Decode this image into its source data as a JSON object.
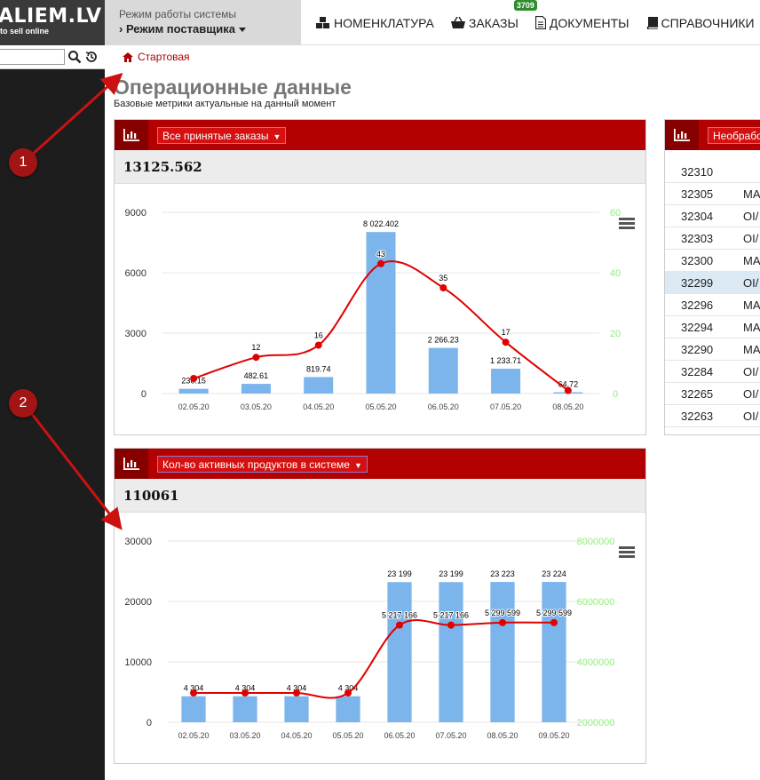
{
  "logo": {
    "name": "ALIEM.LV",
    "tagline": "to sell online"
  },
  "search": {
    "placeholder": "",
    "value": ""
  },
  "mode": {
    "caption": "Режим работы системы",
    "value": "Режим поставщика"
  },
  "nav": [
    {
      "label": "НОМЕНКЛАТУРА",
      "icon": "cubes-icon"
    },
    {
      "label": "ЗАКАЗЫ",
      "icon": "basket-icon",
      "badge": "3709"
    },
    {
      "label": "ДОКУМЕНТЫ",
      "icon": "document-icon"
    },
    {
      "label": "СПРАВОЧНИКИ",
      "icon": "book-icon"
    }
  ],
  "breadcrumb": {
    "label": "Стартовая"
  },
  "page": {
    "title": "Операционные данные",
    "subtitle": "Базовые метрики актуальные на данный момент"
  },
  "panel1": {
    "select_label": "Все принятые заказы",
    "total": "13125.562"
  },
  "panel2": {
    "select_label": "Кол-во активных продуктов в системе",
    "total": "110061"
  },
  "panel3": {
    "select_label": "Необрабо"
  },
  "right_table": [
    {
      "id": "32310",
      "code": ""
    },
    {
      "id": "32305",
      "code": "MA"
    },
    {
      "id": "32304",
      "code": "OI/"
    },
    {
      "id": "32303",
      "code": "OI/"
    },
    {
      "id": "32300",
      "code": "MA"
    },
    {
      "id": "32299",
      "code": "OI/",
      "selected": true
    },
    {
      "id": "32296",
      "code": "MA"
    },
    {
      "id": "32294",
      "code": "MA"
    },
    {
      "id": "32290",
      "code": "MA"
    },
    {
      "id": "32284",
      "code": "OI/"
    },
    {
      "id": "32265",
      "code": "OI/"
    },
    {
      "id": "32263",
      "code": "OI/"
    }
  ],
  "annotations": [
    "1",
    "2"
  ],
  "colors": {
    "brand_red": "#b30000",
    "bar_blue": "#7cb5ec",
    "line_red": "#e00000",
    "right_axis_green": "#90ed7d"
  },
  "chart_data": [
    {
      "type": "bar",
      "categories": [
        "02.05.20",
        "03.05.20",
        "04.05.20",
        "05.05.20",
        "06.05.20",
        "07.05.20",
        "08.05.20"
      ],
      "series": [
        {
          "type": "bar",
          "values": [
            236.15,
            482.61,
            819.74,
            8022.402,
            2266.23,
            1233.71,
            64.72
          ],
          "labels": [
            "236.15",
            "482.61",
            "819.74",
            "8 022.402",
            "2 266.23",
            "1 233.71",
            "64.72"
          ]
        },
        {
          "type": "line",
          "axis": "right",
          "values": [
            5,
            12,
            16,
            43,
            35,
            17,
            1
          ],
          "labels": [
            "",
            "12",
            "16",
            "43",
            "35",
            "17",
            ""
          ]
        }
      ],
      "y_left": {
        "ticks": [
          "0",
          "3000",
          "6000",
          "9000"
        ],
        "range": [
          0,
          9000
        ]
      },
      "y_right": {
        "ticks": [
          "0",
          "20",
          "40",
          "60"
        ],
        "range": [
          0,
          60
        ]
      }
    },
    {
      "type": "bar",
      "categories": [
        "02.05.20",
        "03.05.20",
        "04.05.20",
        "05.05.20",
        "06.05.20",
        "07.05.20",
        "08.05.20",
        "09.05.20"
      ],
      "series": [
        {
          "type": "bar",
          "values": [
            4304,
            4304,
            4304,
            4304,
            23199,
            23199,
            23223,
            23224
          ],
          "labels": [
            "4 304",
            "4 304",
            "4 304",
            "4 304",
            "23 199",
            "23 199",
            "23 223",
            "23 224"
          ]
        },
        {
          "type": "line",
          "axis": "right",
          "values": [
            2970000,
            2970000,
            2970000,
            2970000,
            5217166,
            5217166,
            5299599,
            5299599
          ],
          "labels": [
            "",
            "",
            "",
            "",
            "5 217 166",
            "5 217 166",
            "5 299 599",
            "5 299 599"
          ]
        }
      ],
      "y_left": {
        "ticks": [
          "0",
          "10000",
          "20000",
          "30000"
        ],
        "range": [
          0,
          30000
        ]
      },
      "y_right": {
        "ticks": [
          "2000000",
          "4000000",
          "6000000",
          "8000000"
        ],
        "range": [
          2000000,
          8000000
        ]
      }
    }
  ]
}
